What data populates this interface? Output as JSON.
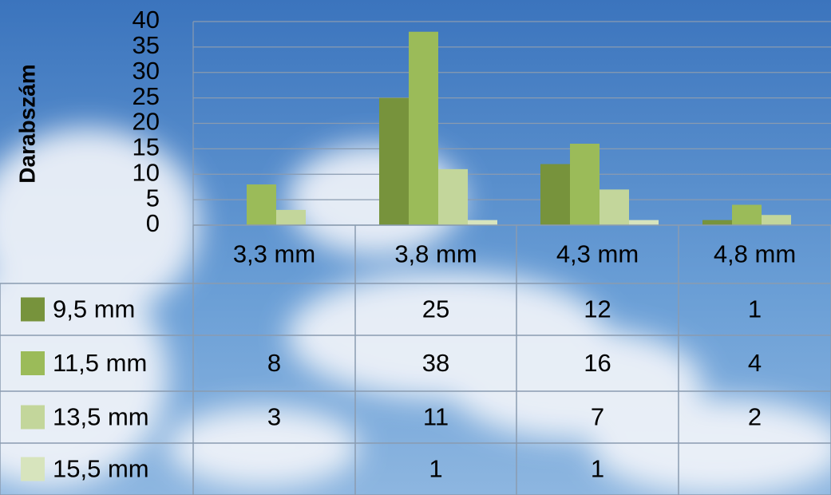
{
  "chart_data": {
    "type": "bar",
    "y_label": "Darabszám",
    "categories": [
      "3,3 mm",
      "3,8 mm",
      "4,3 mm",
      "4,8 mm"
    ],
    "series": [
      {
        "name": "9,5 mm",
        "color": "#77933c",
        "values": [
          null,
          25,
          12,
          1
        ]
      },
      {
        "name": "11,5 mm",
        "color": "#9bbb59",
        "values": [
          8,
          38,
          16,
          4
        ]
      },
      {
        "name": "13,5 mm",
        "color": "#c3d69b",
        "values": [
          3,
          11,
          7,
          2
        ]
      },
      {
        "name": "15,5 mm",
        "color": "#d7e4bd",
        "values": [
          null,
          1,
          1,
          null
        ]
      }
    ],
    "ylim": [
      0,
      40
    ],
    "yticks": [
      0,
      5,
      10,
      15,
      20,
      25,
      30,
      35,
      40
    ],
    "grid": true
  }
}
